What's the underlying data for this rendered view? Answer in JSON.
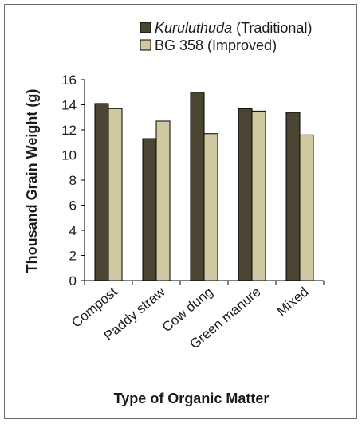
{
  "chart_data": {
    "type": "bar",
    "categories": [
      "Compost",
      "Paddy straw",
      "Cow dung",
      "Green manure",
      "Mixed"
    ],
    "series": [
      {
        "name": "Kuruluthuda",
        "name_suffix": " (Traditional)",
        "color": "#4a4530",
        "values": [
          14.1,
          11.3,
          15.0,
          13.7,
          13.4
        ]
      },
      {
        "name": "BG 358 (Improved)",
        "name_suffix": "",
        "color": "#cfc8a0",
        "values": [
          13.7,
          12.7,
          11.7,
          13.5,
          11.6
        ]
      }
    ],
    "title": "",
    "xlabel": "Type of Organic Matter",
    "ylabel": "Thousand Grain Weight (g)",
    "ylim": [
      0,
      16
    ],
    "yticks": [
      0,
      2,
      4,
      6,
      8,
      10,
      12,
      14,
      16
    ],
    "grid": false,
    "legend_position": "top-right",
    "bar_outline_color": "#000000"
  }
}
